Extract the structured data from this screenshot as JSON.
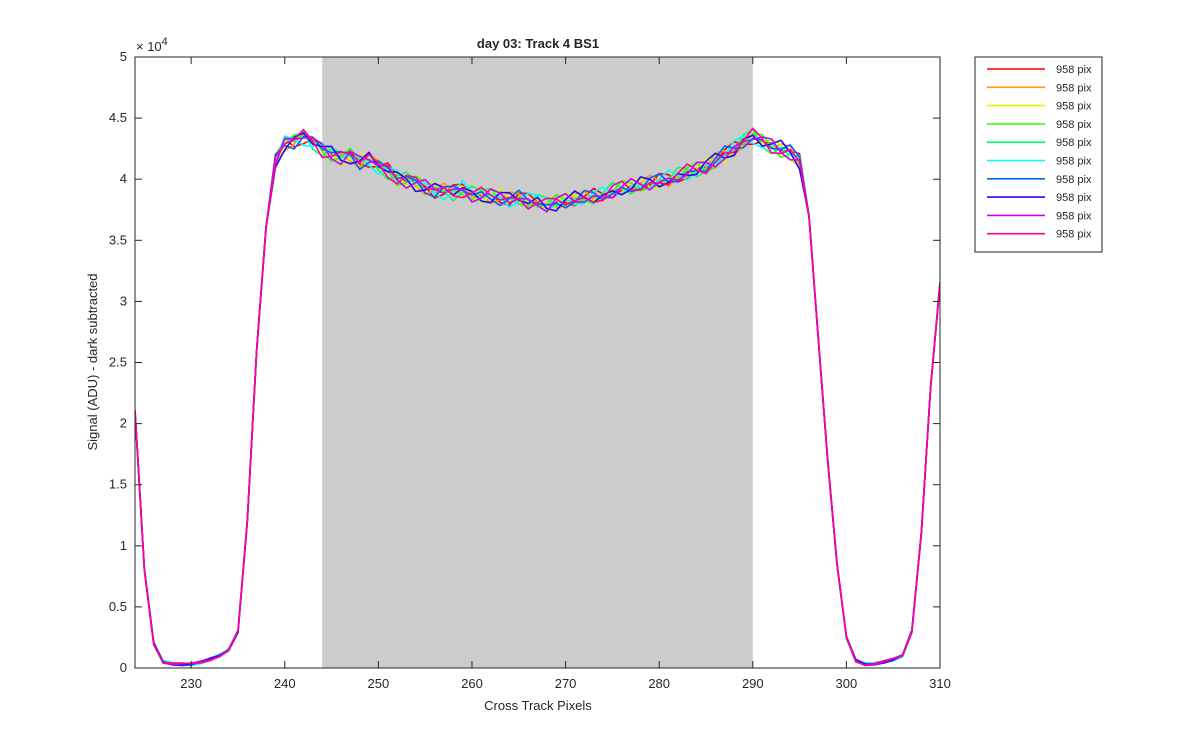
{
  "chart_data": {
    "type": "line",
    "title": "day 03: Track 4  BS1",
    "xlabel": "Cross Track Pixels",
    "ylabel": "Signal (ADU) - dark subtracted",
    "y_exponent_base": "× 10",
    "y_exponent_power": "4",
    "xlim": [
      224,
      310
    ],
    "ylim": [
      0,
      5
    ],
    "x_ticks": [
      230,
      240,
      250,
      260,
      270,
      280,
      290,
      300,
      310
    ],
    "y_ticks": [
      0,
      0.5,
      1,
      1.5,
      2,
      2.5,
      3,
      3.5,
      4,
      4.5,
      5
    ],
    "y_tick_labels": [
      "0",
      "0.5",
      "1",
      "1.5",
      "2",
      "2.5",
      "3",
      "3.5",
      "4",
      "4.5",
      "5"
    ],
    "grid": false,
    "legend_position": "outside-top-right",
    "shaded_region": {
      "x_start": 244,
      "x_end": 290,
      "color": "#cccccc"
    },
    "x": [
      224,
      225,
      226,
      227,
      228,
      229,
      230,
      231,
      232,
      233,
      234,
      235,
      236,
      237,
      238,
      239,
      240,
      241,
      242,
      243,
      244,
      245,
      246,
      247,
      248,
      249,
      250,
      251,
      252,
      253,
      254,
      255,
      256,
      257,
      258,
      259,
      260,
      261,
      262,
      263,
      264,
      265,
      266,
      267,
      268,
      269,
      270,
      271,
      272,
      273,
      274,
      275,
      276,
      277,
      278,
      279,
      280,
      281,
      282,
      283,
      284,
      285,
      286,
      287,
      288,
      289,
      290,
      291,
      292,
      293,
      294,
      295,
      296,
      297,
      298,
      299,
      300,
      301,
      302,
      303,
      304,
      305,
      306,
      307,
      308,
      309,
      310
    ],
    "base_values": [
      2.1,
      0.8,
      0.2,
      0.05,
      0.035,
      0.03,
      0.03,
      0.045,
      0.07,
      0.1,
      0.15,
      0.3,
      1.2,
      2.6,
      3.6,
      4.15,
      4.3,
      4.32,
      4.35,
      4.3,
      4.25,
      4.22,
      4.18,
      4.2,
      4.15,
      4.17,
      4.1,
      4.07,
      4.02,
      4.0,
      3.97,
      3.94,
      3.91,
      3.9,
      3.89,
      3.92,
      3.88,
      3.87,
      3.86,
      3.85,
      3.83,
      3.84,
      3.82,
      3.83,
      3.78,
      3.8,
      3.82,
      3.83,
      3.84,
      3.85,
      3.87,
      3.9,
      3.92,
      3.93,
      3.95,
      3.96,
      3.98,
      4.0,
      4.03,
      4.05,
      4.07,
      4.1,
      4.15,
      4.2,
      4.25,
      4.32,
      4.35,
      4.3,
      4.27,
      4.25,
      4.22,
      4.15,
      3.7,
      2.7,
      1.7,
      0.85,
      0.25,
      0.06,
      0.03,
      0.035,
      0.05,
      0.07,
      0.1,
      0.3,
      1.1,
      2.3,
      3.15
    ],
    "series": [
      {
        "name": "958 pix",
        "color": "#ff0000"
      },
      {
        "name": "958 pix",
        "color": "#ff9900"
      },
      {
        "name": "958 pix",
        "color": "#ccff00"
      },
      {
        "name": "958 pix",
        "color": "#33ff00"
      },
      {
        "name": "958 pix",
        "color": "#00ff66"
      },
      {
        "name": "958 pix",
        "color": "#00ffff"
      },
      {
        "name": "958 pix",
        "color": "#0066ff"
      },
      {
        "name": "958 pix",
        "color": "#3300ff"
      },
      {
        "name": "958 pix",
        "color": "#cc00ff"
      },
      {
        "name": "958 pix",
        "color": "#ff0099"
      }
    ]
  }
}
